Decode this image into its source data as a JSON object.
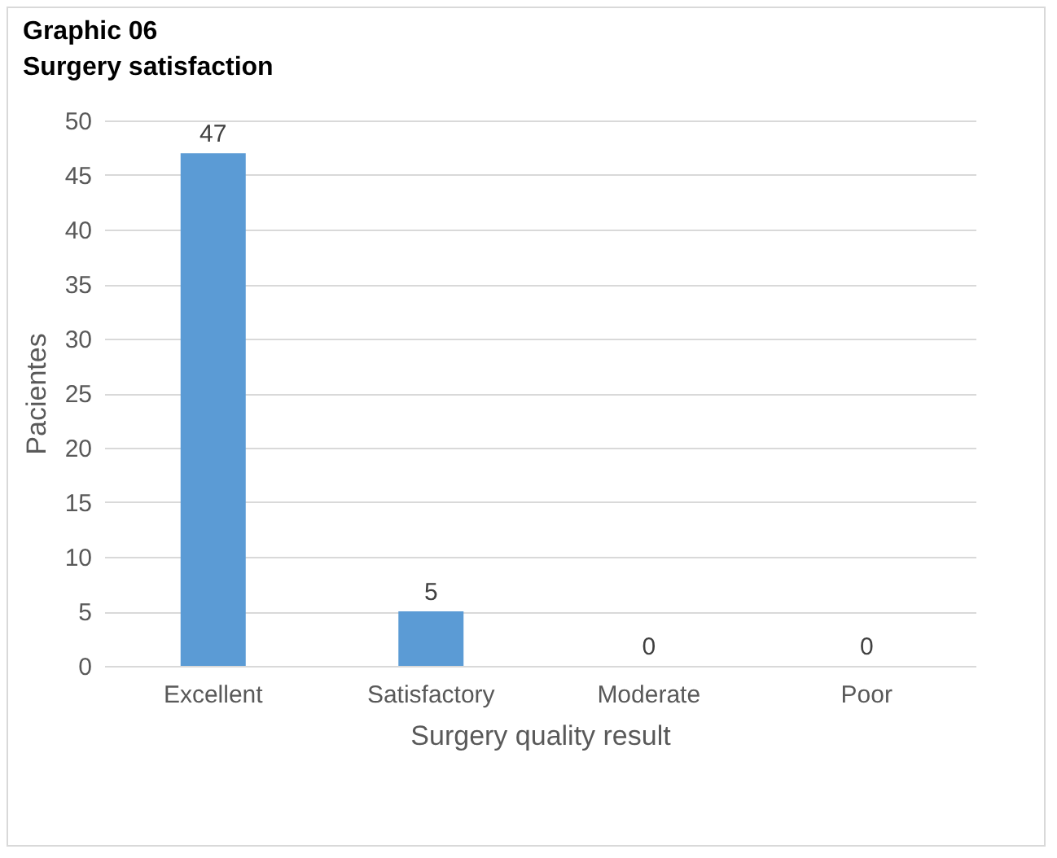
{
  "chart_data": {
    "type": "bar",
    "title": "Graphic 06",
    "subtitle": "Surgery satisfaction",
    "xlabel": "Surgery quality result",
    "ylabel": "Pacientes",
    "categories": [
      "Excellent",
      "Satisfactory",
      "Moderate",
      "Poor"
    ],
    "values": [
      47,
      5,
      0,
      0
    ],
    "color": "#5b9bd5",
    "ylim": [
      0,
      50
    ],
    "yticks": [
      0,
      5,
      10,
      15,
      20,
      25,
      30,
      35,
      40,
      45,
      50
    ],
    "grid": "y",
    "data_labels": true
  }
}
